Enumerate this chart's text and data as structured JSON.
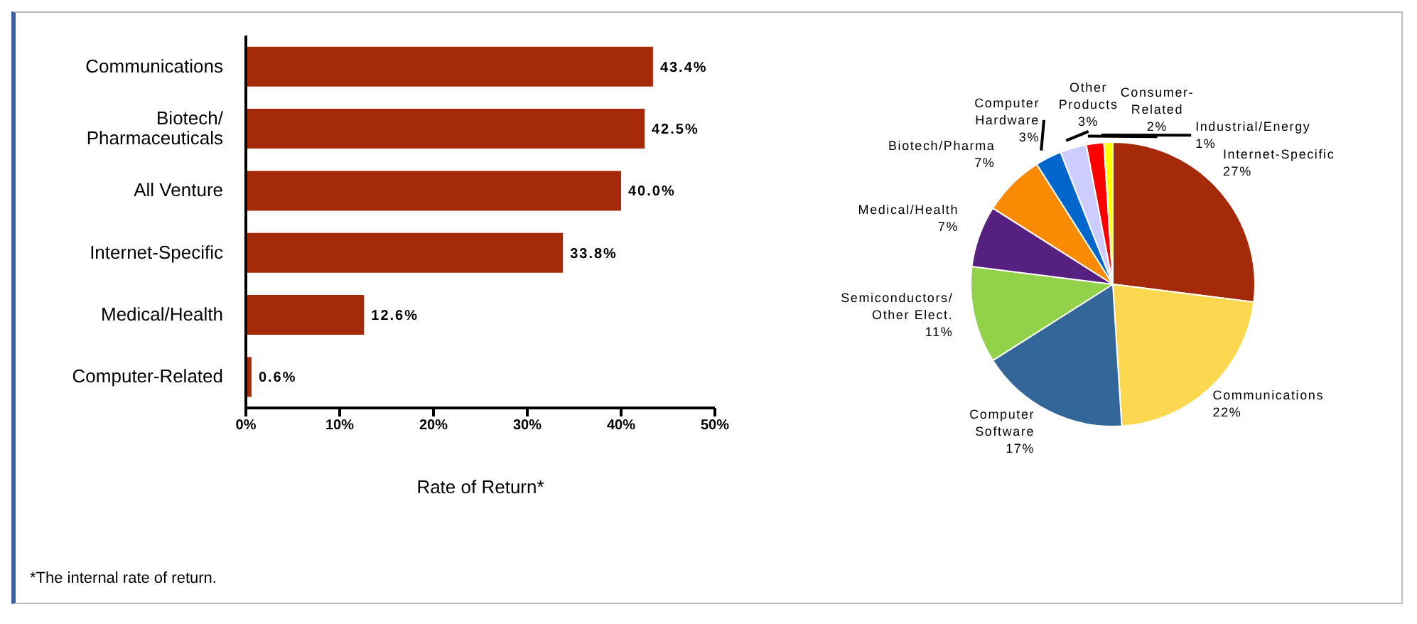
{
  "chart_data": [
    {
      "type": "bar",
      "orientation": "horizontal",
      "categories": [
        "Communications",
        "Biotech/\nPharmaceuticals",
        "All Venture",
        "Internet-Specific",
        "Medical/Health",
        "Computer-Related"
      ],
      "values": [
        43.4,
        42.5,
        40.0,
        33.8,
        12.6,
        0.6
      ],
      "color": "#a52a0a",
      "value_labels": [
        "43.4%",
        "42.5%",
        "40.0%",
        "33.8%",
        "12.6%",
        "0.6%"
      ],
      "xlim": [
        0,
        50
      ],
      "xticks": [
        {
          "value": 0,
          "label": "0%"
        },
        {
          "value": 10,
          "label": "10%"
        },
        {
          "value": 20,
          "label": "20%"
        },
        {
          "value": 30,
          "label": "30%"
        },
        {
          "value": 40,
          "label": "40%"
        },
        {
          "value": 50,
          "label": "50%"
        }
      ],
      "xlabel": "Rate of Return*",
      "grid": false,
      "legend": false,
      "annotations": [
        "*The internal rate of return."
      ]
    },
    {
      "type": "pie",
      "categories": [
        "Internet-Specific",
        "Communications",
        "Computer\nSoftware",
        "Semiconductors/\nOther Elect.",
        "Medical/Health",
        "Biotech/Pharma",
        "Computer\nHardware",
        "Other\nProducts",
        "Consumer-\nRelated",
        "Industrial/Energy"
      ],
      "values": [
        27,
        22,
        17,
        11,
        7,
        7,
        3,
        3,
        2,
        1
      ],
      "colors": [
        "#a52a0a",
        "#fcd850",
        "#336699",
        "#92d14a",
        "#55207f",
        "#f98a04",
        "#0066cc",
        "#ccccff",
        "#ff0000",
        "#ffff00"
      ],
      "value_labels": [
        "27%",
        "22%",
        "17%",
        "11%",
        "7%",
        "7%",
        "3%",
        "3%",
        "2%",
        "1%"
      ],
      "legend": false
    }
  ]
}
